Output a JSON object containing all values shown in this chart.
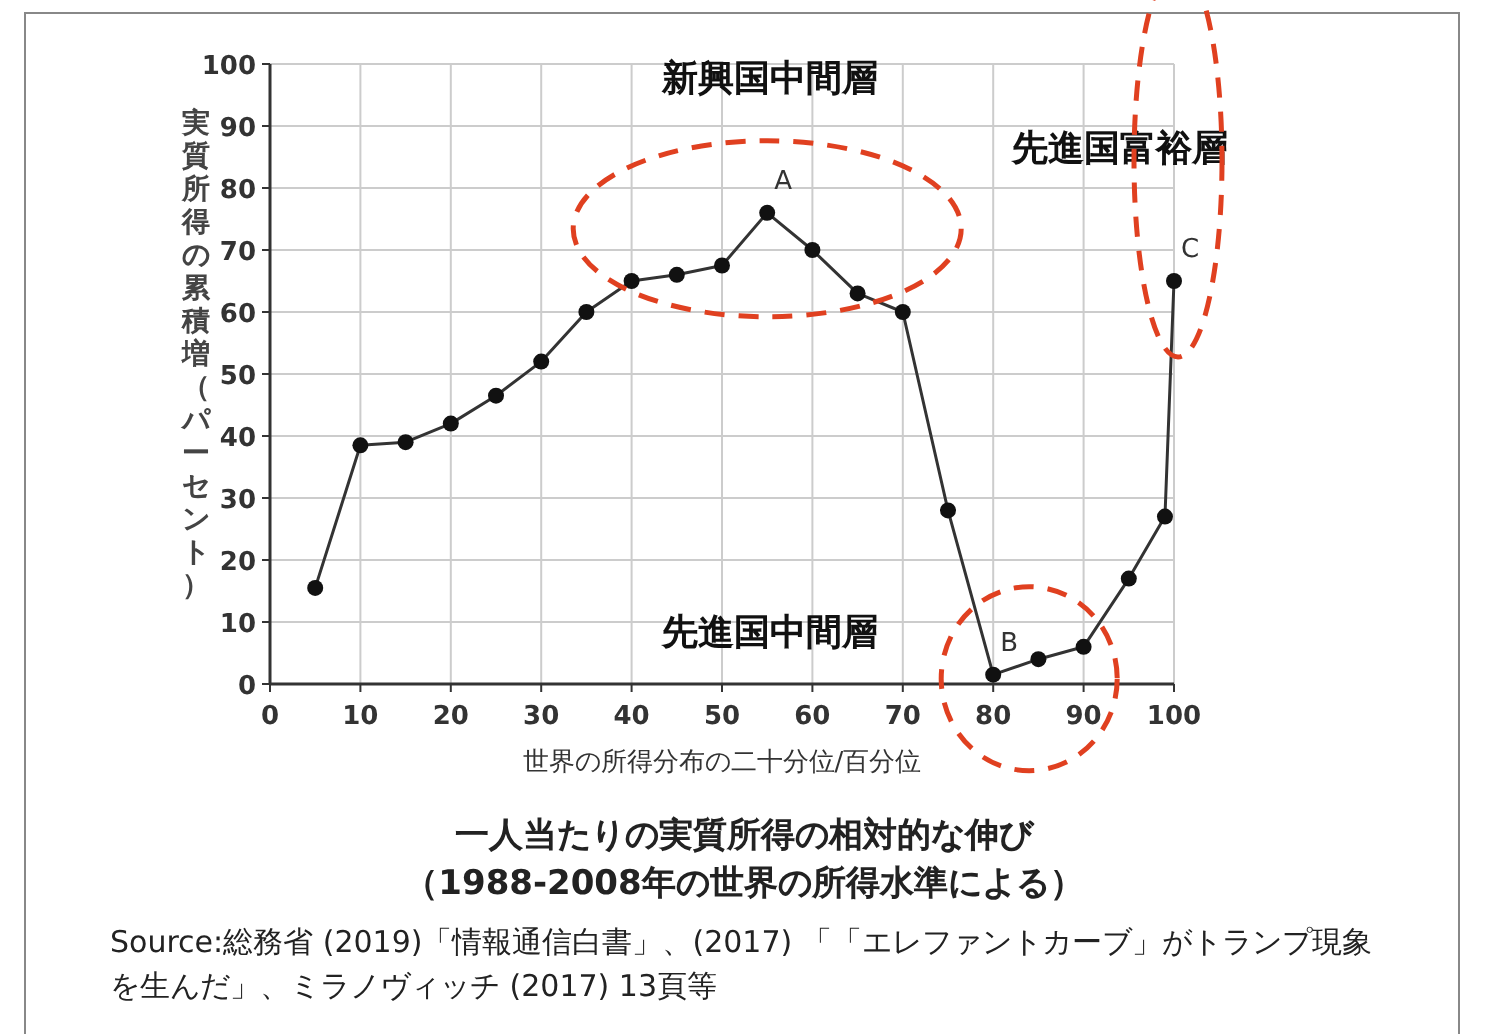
{
  "chart_data": {
    "type": "line",
    "title": "一人当たりの実質所得の相対的な伸び",
    "subtitle": "（1988-2008年の世界の所得水準による）",
    "xlabel": "世界の所得分布の二十分位/百分位",
    "ylabel": "実質所得の累積増（パーセント）",
    "x": [
      5,
      10,
      15,
      20,
      25,
      30,
      35,
      40,
      45,
      50,
      55,
      60,
      65,
      70,
      75,
      80,
      85,
      90,
      95,
      99,
      100
    ],
    "series": [
      {
        "color": "#333333",
        "values": [
          15.5,
          38.5,
          39,
          42,
          46.5,
          52,
          60,
          65,
          66,
          67.5,
          76,
          70,
          63,
          60,
          28,
          1.5,
          4,
          6,
          17,
          27,
          65
        ]
      }
    ],
    "xlim": [
      0,
      100
    ],
    "ylim": [
      0,
      100
    ],
    "xticks": [
      0,
      10,
      20,
      30,
      40,
      50,
      60,
      70,
      80,
      90,
      100
    ],
    "yticks": [
      0,
      10,
      20,
      30,
      40,
      50,
      60,
      70,
      80,
      90,
      100
    ],
    "grid": true,
    "marker": "circle",
    "line_style": "solid",
    "annotations": [
      "新興国中間層",
      "先進国富裕層",
      "先進国中間層",
      {
        "text": "A",
        "x": 55,
        "y": 76
      },
      {
        "text": "B",
        "x": 80,
        "y": 1.5
      },
      {
        "text": "C",
        "x": 100,
        "y": 65
      },
      "Source:総務省 (2019)「情報通信白書」、(2017) 「「エレファントカーブ」がトランプ現象を生んだ」、ミラノヴィッチ (2017) 13頁等"
    ]
  }
}
